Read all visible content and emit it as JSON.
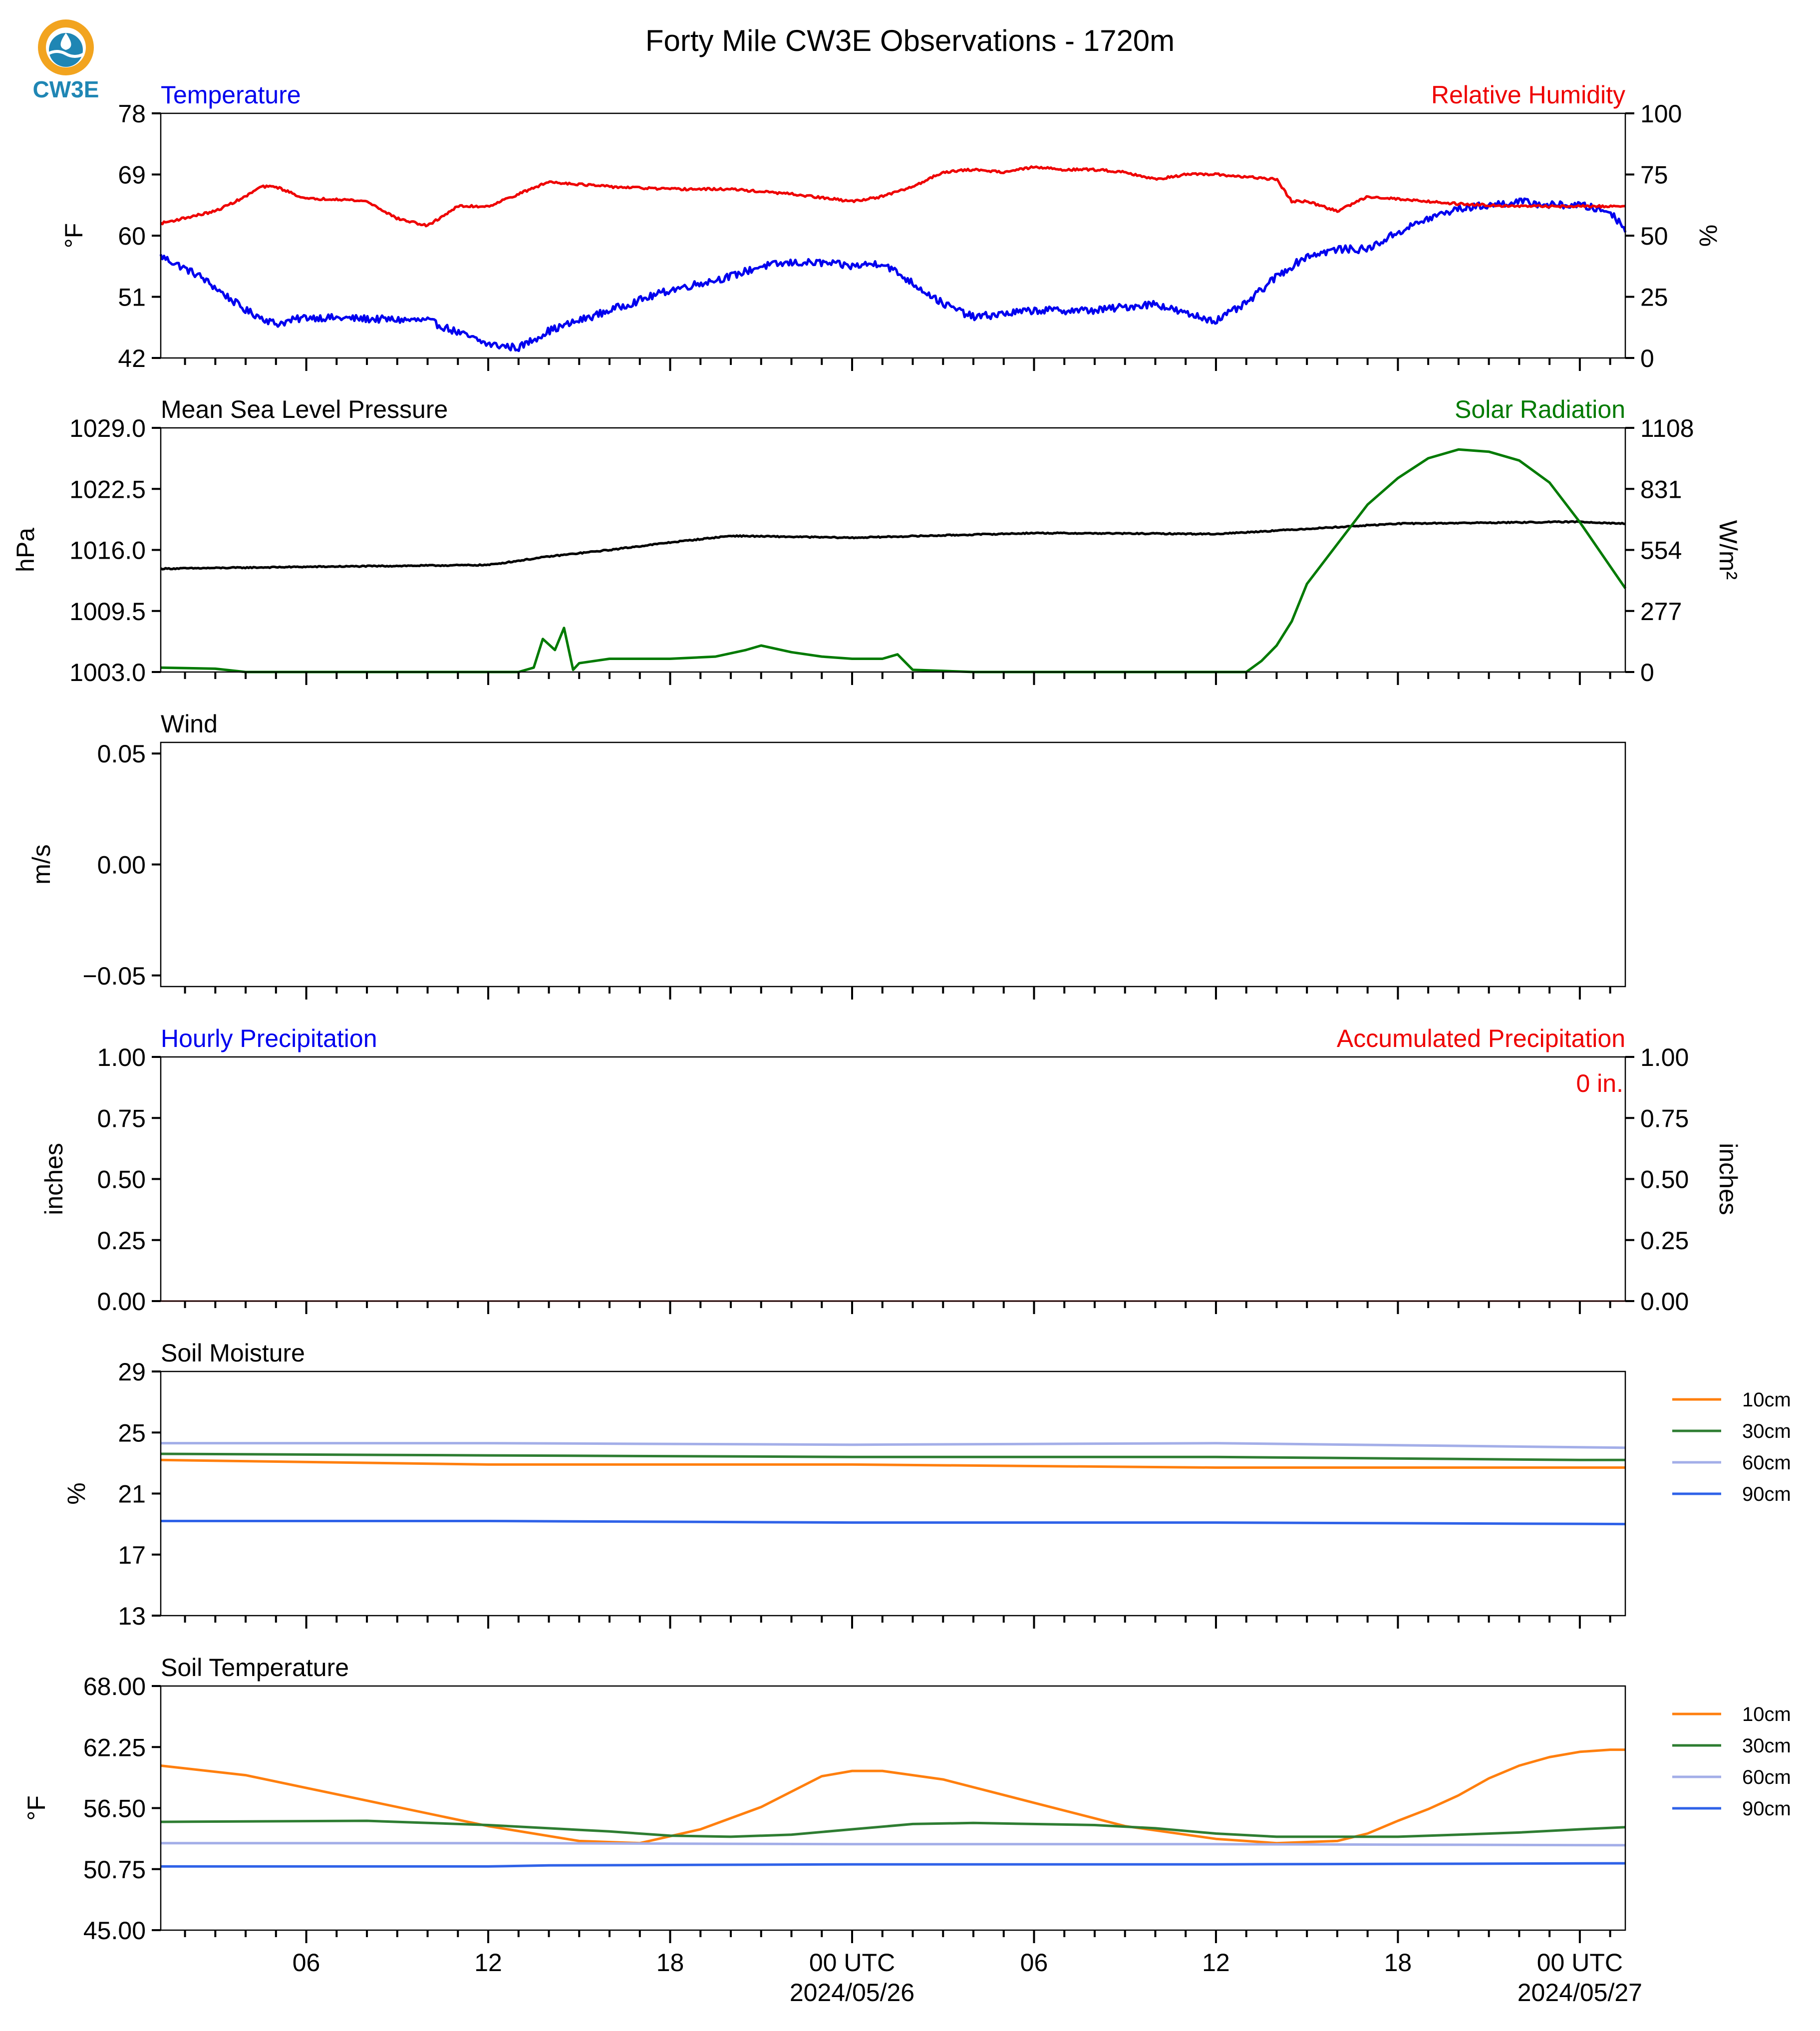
{
  "page": {
    "title": "Forty Mile CW3E Observations - 1720m",
    "logo_text": "CW3E"
  },
  "colors": {
    "temperature": "#0000ee",
    "humidity": "#ee0000",
    "pressure": "#000000",
    "solar": "#007a00",
    "soil_10cm": "#ff7f0e",
    "soil_30cm": "#2e7d32",
    "soil_60cm": "#a3aee8",
    "soil_90cm": "#2f62e8"
  },
  "x_axis": {
    "range_hours": [
      -22.8,
      25.5
    ],
    "tick_hours": [
      -18,
      -12,
      -6,
      0,
      6,
      12,
      18,
      24
    ],
    "tick_labels": [
      "06",
      "12",
      "18",
      "00 UTC",
      "06",
      "12",
      "18",
      "00 UTC"
    ],
    "date_labels": [
      {
        "hour": 0,
        "label": "2024/05/26"
      },
      {
        "hour": 24,
        "label": "2024/05/27"
      }
    ],
    "minor_tick_step_hours": 1
  },
  "chart_data": [
    {
      "id": "temp_rh",
      "type": "line",
      "title_left": "Temperature",
      "title_right": "Relative Humidity",
      "ylabel": "°F",
      "ylabel_right": "%",
      "ylim": [
        42,
        78
      ],
      "yticks": [
        "42",
        "51",
        "60",
        "69",
        "78"
      ],
      "ylim_right": [
        0,
        100
      ],
      "yticks_right": [
        "0",
        "25",
        "50",
        "75",
        "100"
      ],
      "series": [
        {
          "name": "Temperature",
          "axis": "left",
          "color_key": "temperature",
          "x": [
            -22.8,
            -21.5,
            -20,
            -19,
            -18,
            -14,
            -12,
            -11,
            -10,
            -8,
            -6,
            -4,
            -3,
            -2,
            -1,
            0,
            1,
            2,
            3,
            4,
            6,
            8,
            10,
            11,
            12,
            13,
            14,
            15,
            16,
            17,
            18,
            19,
            20,
            21,
            22,
            23,
            24,
            25,
            25.5
          ],
          "y": [
            57,
            54,
            49,
            47,
            48,
            47.5,
            44,
            43.5,
            46,
            49,
            52,
            54,
            55.5,
            56,
            56,
            55.5,
            56,
            53,
            50,
            48,
            49,
            49,
            50,
            48.5,
            47.5,
            50,
            54,
            57,
            58,
            58,
            60.5,
            62.5,
            64,
            64.5,
            65,
            64.5,
            64.5,
            63.5,
            61
          ]
        },
        {
          "name": "Relative Humidity",
          "axis": "right",
          "color_key": "humidity",
          "x": [
            -22.8,
            -21,
            -20,
            -19.5,
            -19,
            -18,
            -17,
            -16,
            -15,
            -14,
            -13,
            -12,
            -11,
            -10,
            -8,
            -6,
            -4,
            -2,
            0,
            1,
            2,
            3,
            4,
            5,
            6,
            7,
            8,
            9,
            10,
            11,
            12,
            13,
            14,
            14.5,
            15,
            16,
            17,
            18,
            20,
            22,
            24,
            25.5
          ],
          "y": [
            55,
            60,
            66,
            70,
            70,
            65,
            65,
            64,
            57,
            54,
            62,
            62,
            67,
            72,
            70,
            69,
            69,
            67,
            64,
            66,
            70,
            76,
            77,
            76,
            78,
            77,
            77,
            76,
            73,
            75,
            75,
            74,
            73,
            64,
            64,
            60,
            66,
            65,
            63,
            62,
            62,
            62
          ]
        }
      ]
    },
    {
      "id": "pressure_solar",
      "type": "line",
      "title_left": "Mean Sea Level Pressure",
      "title_right": "Solar Radiation",
      "ylabel": "hPa",
      "ylabel_right": "W/m²",
      "ylim": [
        1003.0,
        1029.0
      ],
      "yticks": [
        "1003.0",
        "1009.5",
        "1016.0",
        "1022.5",
        "1029.0"
      ],
      "ylim_right": [
        0,
        1108
      ],
      "yticks_right": [
        "0",
        "277",
        "554",
        "831",
        "1108"
      ],
      "series": [
        {
          "name": "Mean Sea Level Pressure",
          "axis": "left",
          "color_key": "pressure",
          "x": [
            -22.8,
            -18,
            -12,
            -10,
            -8,
            -6,
            -4,
            0,
            6,
            12,
            18,
            24,
            25.5
          ],
          "y": [
            1014.0,
            1014.2,
            1014.4,
            1015.3,
            1016.0,
            1016.8,
            1017.5,
            1017.3,
            1017.8,
            1017.7,
            1018.8,
            1019.0,
            1018.8
          ]
        },
        {
          "name": "Solar Radiation",
          "axis": "right",
          "color_key": "solar",
          "x": [
            -22.8,
            -21,
            -20,
            -12,
            -11,
            -10.5,
            -10.2,
            -9.8,
            -9.5,
            -9.2,
            -9,
            -8,
            -6,
            -4.5,
            -3.5,
            -3,
            -2,
            -1,
            0,
            1,
            1.5,
            2,
            4,
            8,
            12,
            13,
            13.5,
            14,
            14.5,
            15,
            16,
            17,
            18,
            19,
            20,
            21,
            22,
            23,
            24,
            25,
            25.5
          ],
          "y": [
            20,
            15,
            0,
            0,
            0,
            20,
            150,
            100,
            200,
            10,
            40,
            60,
            60,
            70,
            100,
            120,
            90,
            70,
            60,
            60,
            80,
            10,
            0,
            0,
            0,
            0,
            50,
            120,
            230,
            400,
            580,
            760,
            880,
            970,
            1010,
            1000,
            960,
            860,
            680,
            480,
            380
          ]
        }
      ]
    },
    {
      "id": "wind",
      "type": "line",
      "title_left": "Wind",
      "ylabel": "m/s",
      "ylim": [
        -0.055,
        0.055
      ],
      "ytick_values": [
        -0.05,
        0.0,
        0.05
      ],
      "yticks": [
        "−0.05",
        "0.00",
        "0.05"
      ],
      "series": []
    },
    {
      "id": "precip",
      "type": "line",
      "title_left": "Hourly Precipitation",
      "title_right": "Accumulated Precipitation",
      "ylabel": "inches",
      "ylabel_right": "inches",
      "ylim": [
        0.0,
        1.0
      ],
      "yticks": [
        "0.00",
        "0.25",
        "0.50",
        "0.75",
        "1.00"
      ],
      "ylim_right": [
        0.0,
        1.0
      ],
      "yticks_right": [
        "0.00",
        "0.25",
        "0.50",
        "0.75",
        "1.00"
      ],
      "annotation": "0 in.",
      "series": [
        {
          "name": "Hourly Precipitation",
          "axis": "left",
          "color_key": "temperature",
          "x": [
            -22.8,
            25.5
          ],
          "y": [
            0,
            0
          ]
        },
        {
          "name": "Accumulated Precipitation",
          "axis": "right",
          "color_key": "humidity",
          "x": [
            -22.8,
            25.5
          ],
          "y": [
            0,
            0
          ]
        }
      ]
    },
    {
      "id": "soil_moisture",
      "type": "line",
      "title_left": "Soil Moisture",
      "ylabel": "%",
      "ylim": [
        13,
        29
      ],
      "yticks": [
        "13",
        "17",
        "21",
        "25",
        "29"
      ],
      "legend": "right",
      "series": [
        {
          "name": "10cm",
          "color_key": "soil_10cm",
          "x": [
            -22.8,
            -12,
            0,
            12,
            25.5
          ],
          "y": [
            23.2,
            22.9,
            22.9,
            22.7,
            22.7
          ]
        },
        {
          "name": "30cm",
          "color_key": "soil_30cm",
          "x": [
            -22.8,
            -12,
            0,
            12,
            24,
            25.5
          ],
          "y": [
            23.6,
            23.5,
            23.4,
            23.4,
            23.2,
            23.2
          ]
        },
        {
          "name": "60cm",
          "color_key": "soil_60cm",
          "x": [
            -22.8,
            -12,
            0,
            12,
            25.5
          ],
          "y": [
            24.3,
            24.3,
            24.2,
            24.3,
            24.0
          ]
        },
        {
          "name": "90cm",
          "color_key": "soil_90cm",
          "x": [
            -22.8,
            -12,
            0,
            12,
            25.5
          ],
          "y": [
            19.2,
            19.2,
            19.1,
            19.1,
            19.0
          ]
        }
      ]
    },
    {
      "id": "soil_temp",
      "type": "line",
      "title_left": "Soil Temperature",
      "ylabel": "°F",
      "ylim": [
        45.0,
        68.0
      ],
      "yticks": [
        "45.00",
        "50.75",
        "56.50",
        "62.25",
        "68.00"
      ],
      "legend": "right",
      "series": [
        {
          "name": "10cm",
          "color_key": "soil_10cm",
          "x": [
            -22.8,
            -20,
            -16,
            -12,
            -9,
            -7,
            -5,
            -3,
            -1,
            0,
            1,
            3,
            6,
            9,
            12,
            14,
            15,
            16,
            17,
            18,
            19,
            20,
            21,
            22,
            23,
            24,
            25,
            25.5
          ],
          "y": [
            60.5,
            59.6,
            57.2,
            54.8,
            53.4,
            53.2,
            54.5,
            56.6,
            59.5,
            60.0,
            60.0,
            59.2,
            57.0,
            54.8,
            53.6,
            53.2,
            53.3,
            53.4,
            54.1,
            55.3,
            56.4,
            57.7,
            59.3,
            60.5,
            61.3,
            61.8,
            62.0,
            62.0
          ]
        },
        {
          "name": "30cm",
          "color_key": "soil_30cm",
          "x": [
            -22.8,
            -16,
            -12,
            -8,
            -6,
            -4,
            -2,
            0,
            2,
            4,
            8,
            10,
            12,
            14,
            16,
            18,
            20,
            22,
            24,
            25.5
          ],
          "y": [
            55.2,
            55.3,
            54.9,
            54.3,
            53.9,
            53.8,
            54.0,
            54.5,
            55.0,
            55.1,
            54.9,
            54.6,
            54.1,
            53.8,
            53.8,
            53.8,
            54.0,
            54.2,
            54.5,
            54.7
          ]
        },
        {
          "name": "60cm",
          "color_key": "soil_60cm",
          "x": [
            -22.8,
            -12,
            0,
            12,
            25.5
          ],
          "y": [
            53.2,
            53.2,
            53.1,
            53.1,
            53.0
          ]
        },
        {
          "name": "90cm",
          "color_key": "soil_90cm",
          "x": [
            -22.8,
            -12,
            -10,
            0,
            12,
            25.5
          ],
          "y": [
            51.0,
            51.0,
            51.1,
            51.2,
            51.2,
            51.3
          ]
        }
      ]
    }
  ]
}
